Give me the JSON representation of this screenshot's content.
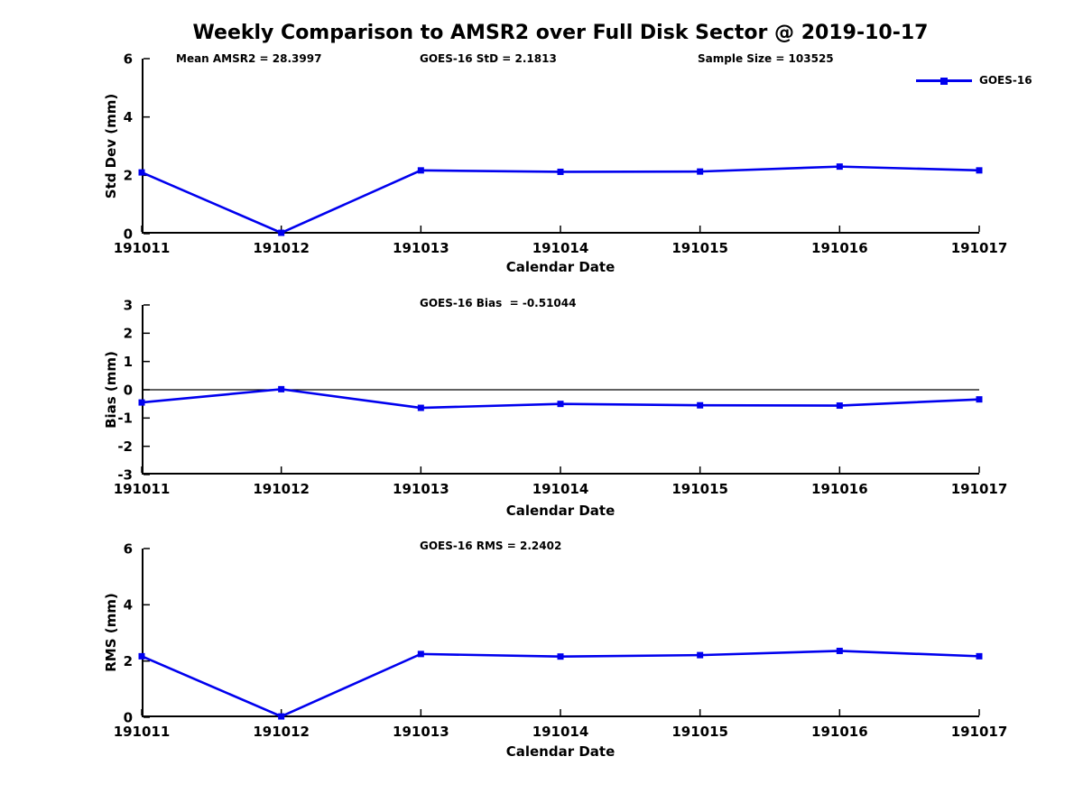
{
  "title": "Weekly Comparison to AMSR2 over Full Disk Sector @ 2019-10-17",
  "xlabel": "Calendar Date",
  "colors": {
    "series_blue": "#0000ee",
    "axis_black": "#000000",
    "background": "#ffffff"
  },
  "chart_data": [
    {
      "type": "line",
      "id": "std-dev",
      "ylabel": "Std Dev (mm)",
      "xlabel": "Calendar Date",
      "ylim": [
        0,
        6
      ],
      "yticks": [
        0,
        2,
        4,
        6
      ],
      "x_categories": [
        "191011",
        "191012",
        "191013",
        "191014",
        "191015",
        "191016",
        "191017"
      ],
      "series": [
        {
          "name": "GOES-16",
          "color": "#0000ee",
          "marker": "square",
          "values": [
            2.1,
            0.03,
            2.17,
            2.12,
            2.13,
            2.3,
            2.17
          ]
        }
      ],
      "zero_line": false,
      "grid": false,
      "legend": {
        "label": "GOES-16",
        "position": "upper-right"
      },
      "annotations": [
        "Mean AMSR2 = 28.3997",
        "GOES-16 StD = 2.1813",
        "Sample Size = 103525"
      ]
    },
    {
      "type": "line",
      "id": "bias",
      "ylabel": "Bias (mm)",
      "xlabel": "Calendar Date",
      "ylim": [
        -3,
        3
      ],
      "yticks": [
        3,
        2,
        1,
        0,
        -1,
        -2,
        -3
      ],
      "x_categories": [
        "191011",
        "191012",
        "191013",
        "191014",
        "191015",
        "191016",
        "191017"
      ],
      "series": [
        {
          "name": "GOES-16",
          "color": "#0000ee",
          "marker": "square",
          "values": [
            -0.45,
            0.02,
            -0.64,
            -0.5,
            -0.55,
            -0.56,
            -0.34
          ]
        }
      ],
      "zero_line": true,
      "grid": false,
      "annotations": [
        "GOES-16 Bias  = -0.51044"
      ]
    },
    {
      "type": "line",
      "id": "rms",
      "ylabel": "RMS (mm)",
      "xlabel": "Calendar Date",
      "ylim": [
        0,
        6
      ],
      "yticks": [
        0,
        2,
        4,
        6
      ],
      "x_categories": [
        "191011",
        "191012",
        "191013",
        "191014",
        "191015",
        "191016",
        "191017"
      ],
      "series": [
        {
          "name": "GOES-16",
          "color": "#0000ee",
          "marker": "square",
          "values": [
            2.17,
            0.03,
            2.25,
            2.16,
            2.21,
            2.36,
            2.17
          ]
        }
      ],
      "zero_line": false,
      "grid": false,
      "annotations": [
        "GOES-16 RMS = 2.2402"
      ]
    }
  ]
}
